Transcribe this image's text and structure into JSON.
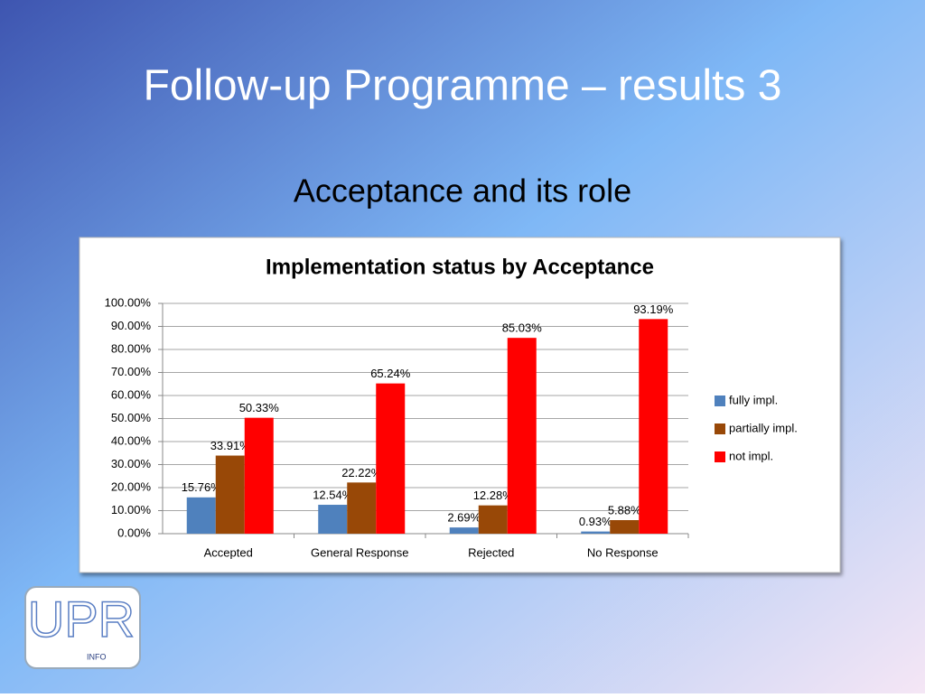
{
  "slide": {
    "title": "Follow-up Programme – results 3",
    "subtitle": "Acceptance and its role",
    "logo": {
      "mark": "UPR",
      "tag": "INFO"
    }
  },
  "chart_data": {
    "type": "bar",
    "title": "Implementation status by Acceptance",
    "categories": [
      "Accepted",
      "General Response",
      "Rejected",
      "No Response"
    ],
    "series": [
      {
        "name": "fully impl.",
        "color": "#4f81bd",
        "values": [
          15.76,
          12.54,
          2.69,
          0.93
        ],
        "value_labels": [
          "15.76%",
          "12.54%",
          "2.69%",
          "0.93%"
        ]
      },
      {
        "name": "partially impl.",
        "color": "#984807",
        "values": [
          33.91,
          22.22,
          12.28,
          5.88
        ],
        "value_labels": [
          "33.91%",
          "22.22%",
          "12.28%",
          "5.88%"
        ]
      },
      {
        "name": "not impl.",
        "color": "#ff0000",
        "values": [
          50.33,
          65.24,
          85.03,
          93.19
        ],
        "value_labels": [
          "50.33%",
          "65.24%",
          "85.03%",
          "93.19%"
        ]
      }
    ],
    "ylim": [
      0,
      100
    ],
    "yticks": [
      {
        "value": 0,
        "label": "0.00%"
      },
      {
        "value": 10,
        "label": "10.00%"
      },
      {
        "value": 20,
        "label": "20.00%"
      },
      {
        "value": 30,
        "label": "30.00%"
      },
      {
        "value": 40,
        "label": "40.00%"
      },
      {
        "value": 50,
        "label": "50.00%"
      },
      {
        "value": 60,
        "label": "60.00%"
      },
      {
        "value": 70,
        "label": "70.00%"
      },
      {
        "value": 80,
        "label": "80.00%"
      },
      {
        "value": 90,
        "label": "90.00%"
      },
      {
        "value": 100,
        "label": "100.00%"
      }
    ],
    "grid": true,
    "legend": "right"
  }
}
